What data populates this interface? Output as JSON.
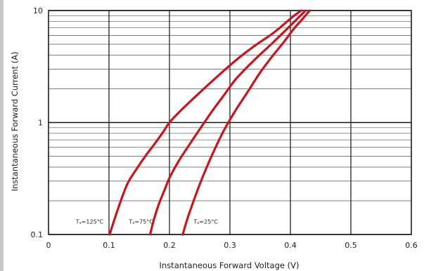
{
  "chart_data": {
    "type": "line",
    "title": "",
    "xlabel": "Instantaneous Forward Voltage (V)",
    "ylabel": "Instantaneous Forward Current (A)",
    "xlim": [
      0,
      0.6
    ],
    "ylim": [
      0.1,
      10
    ],
    "y_scale": "log",
    "grid": true,
    "x_ticks": [
      "0",
      "0.1",
      "0.2",
      "0.3",
      "0.4",
      "0.5",
      "0.6"
    ],
    "y_ticks": [
      "0.1",
      "1",
      "10"
    ],
    "line_color": "#c8151e",
    "grid_color": "#111111",
    "series": [
      {
        "name": "Tₐ=125°C",
        "x": [
          0.101,
          0.115,
          0.13,
          0.145,
          0.16,
          0.175,
          0.19,
          0.2,
          0.22,
          0.25,
          0.28,
          0.31,
          0.34,
          0.37,
          0.39,
          0.405,
          0.418
        ],
        "y": [
          0.1,
          0.17,
          0.28,
          0.38,
          0.5,
          0.64,
          0.83,
          1.0,
          1.3,
          1.85,
          2.6,
          3.6,
          4.8,
          6.2,
          7.6,
          8.9,
          10.0
        ]
      },
      {
        "name": "Tₐ=75°C",
        "x": [
          0.168,
          0.175,
          0.183,
          0.192,
          0.2,
          0.215,
          0.23,
          0.25,
          0.27,
          0.29,
          0.31,
          0.34,
          0.37,
          0.395,
          0.412,
          0.425
        ],
        "y": [
          0.1,
          0.14,
          0.19,
          0.25,
          0.32,
          0.45,
          0.6,
          0.87,
          1.25,
          1.75,
          2.45,
          3.6,
          5.1,
          6.9,
          8.5,
          10.0
        ]
      },
      {
        "name": "Tₐ=25°C",
        "x": [
          0.222,
          0.23,
          0.24,
          0.25,
          0.26,
          0.275,
          0.29,
          0.31,
          0.33,
          0.35,
          0.37,
          0.39,
          0.405,
          0.42,
          0.432
        ],
        "y": [
          0.1,
          0.14,
          0.2,
          0.28,
          0.38,
          0.58,
          0.85,
          1.3,
          1.9,
          2.8,
          3.9,
          5.3,
          6.8,
          8.4,
          10.0
        ]
      }
    ],
    "curve_labels": [
      "Tₐ=125°C",
      "Tₐ=75°C",
      "Tₐ=25°C"
    ],
    "curve_label_positions": [
      {
        "x": 0.045,
        "y": 0.125
      },
      {
        "x": 0.133,
        "y": 0.125
      },
      {
        "x": 0.24,
        "y": 0.125
      }
    ]
  }
}
